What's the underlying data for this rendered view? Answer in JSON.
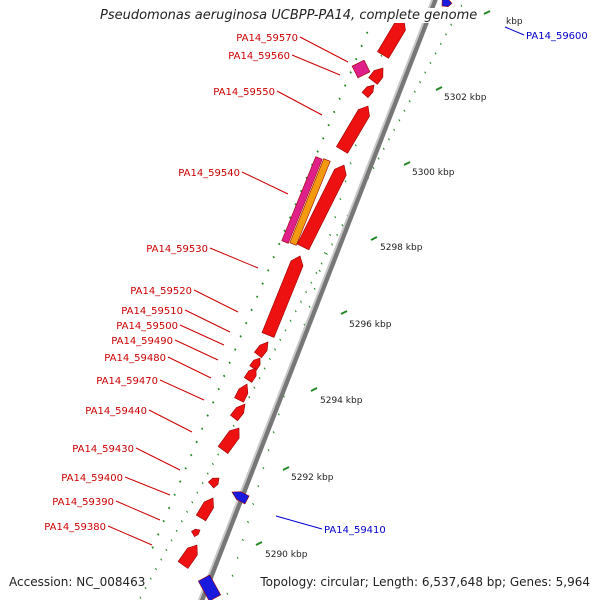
{
  "title": "Pseudomonas aeruginosa UCBPP-PA14, complete genome",
  "footer": {
    "accession": "Accession: NC_008463",
    "summary": "Topology: circular; Length: 6,537,648 bp; Genes: 5,964"
  },
  "colors": {
    "forward_gene": "#ee1111",
    "reverse_gene": "#1a1add",
    "pink_gene": "#e0208a",
    "orange_gene": "#f39a10",
    "red_label": "#cc0000",
    "blue_label": "#0000cc",
    "tick": "#228822",
    "backbone": "#8a8a8a"
  },
  "ticks": [
    {
      "label": "5290 kbp"
    },
    {
      "label": "5292 kbp"
    },
    {
      "label": "5294 kbp"
    },
    {
      "label": "5296 kbp"
    },
    {
      "label": "5298 kbp"
    },
    {
      "label": "5300 kbp"
    },
    {
      "label": "5302 kbp"
    },
    {
      "label": "kbp"
    }
  ],
  "gene_labels": [
    {
      "name": "PA14_59570",
      "strand": "forward"
    },
    {
      "name": "PA14_59560",
      "strand": "forward"
    },
    {
      "name": "PA14_59550",
      "strand": "forward"
    },
    {
      "name": "PA14_59540",
      "strand": "forward"
    },
    {
      "name": "PA14_59530",
      "strand": "forward"
    },
    {
      "name": "PA14_59520",
      "strand": "forward"
    },
    {
      "name": "PA14_59510",
      "strand": "forward"
    },
    {
      "name": "PA14_59500",
      "strand": "forward"
    },
    {
      "name": "PA14_59490",
      "strand": "forward"
    },
    {
      "name": "PA14_59480",
      "strand": "forward"
    },
    {
      "name": "PA14_59470",
      "strand": "forward"
    },
    {
      "name": "PA14_59440",
      "strand": "forward"
    },
    {
      "name": "PA14_59430",
      "strand": "forward"
    },
    {
      "name": "PA14_59400",
      "strand": "forward"
    },
    {
      "name": "PA14_59390",
      "strand": "forward"
    },
    {
      "name": "PA14_59380",
      "strand": "forward"
    },
    {
      "name": "PA14_59600",
      "strand": "reverse"
    },
    {
      "name": "PA14_59410",
      "strand": "reverse"
    }
  ]
}
